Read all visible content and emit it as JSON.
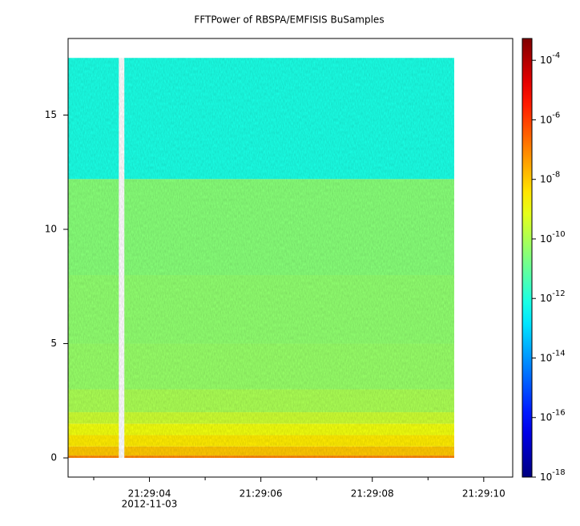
{
  "chart_data": {
    "type": "spectrogram",
    "title": "FFTPower of RBSPA/EMFISIS  BuSamples",
    "x_date_label": "2012-11-03",
    "xlim": [
      2.54,
      10.52
    ],
    "xticks": [
      {
        "value": 4,
        "label": "21:29:04"
      },
      {
        "value": 6,
        "label": "21:29:06"
      },
      {
        "value": 8,
        "label": "21:29:08"
      },
      {
        "value": 10,
        "label": "21:29:10"
      }
    ],
    "xminorticks": [
      3,
      5,
      7,
      9
    ],
    "ylim": [
      -0.84,
      18.35
    ],
    "yticks": [
      0,
      5,
      10,
      15
    ],
    "xbins": [
      2.54,
      3.45,
      3.55,
      9.47
    ],
    "ybins": [
      0,
      0.1,
      0.5,
      1,
      1.5,
      2,
      3,
      5,
      8,
      12.2,
      17.5
    ],
    "values": [
      [
        1e-07,
        null,
        1e-07
      ],
      [
        1e-08,
        null,
        1e-08
      ],
      [
        3e-09,
        null,
        3e-09
      ],
      [
        1e-09,
        null,
        1e-09
      ],
      [
        3e-10,
        null,
        3e-10
      ],
      [
        1e-10,
        null,
        1e-10
      ],
      [
        5e-11,
        null,
        5e-11
      ],
      [
        4e-11,
        null,
        4e-11
      ],
      [
        3e-11,
        null,
        3e-11
      ],
      [
        8e-13,
        null,
        8e-13
      ]
    ],
    "zscale": "log",
    "colormap": "jet",
    "zlim": [
      1e-18,
      0.00054
    ],
    "zticks": [
      {
        "value": 1e-18,
        "label": "10-18"
      },
      {
        "value": 1e-16,
        "label": "10-16"
      },
      {
        "value": 1e-14,
        "label": "10-14"
      },
      {
        "value": 1e-12,
        "label": "10-12"
      },
      {
        "value": 1e-10,
        "label": "10-10"
      },
      {
        "value": 1e-08,
        "label": "10-8"
      },
      {
        "value": 1e-06,
        "label": "10-6"
      },
      {
        "value": 0.0001,
        "label": "10-4"
      }
    ]
  }
}
